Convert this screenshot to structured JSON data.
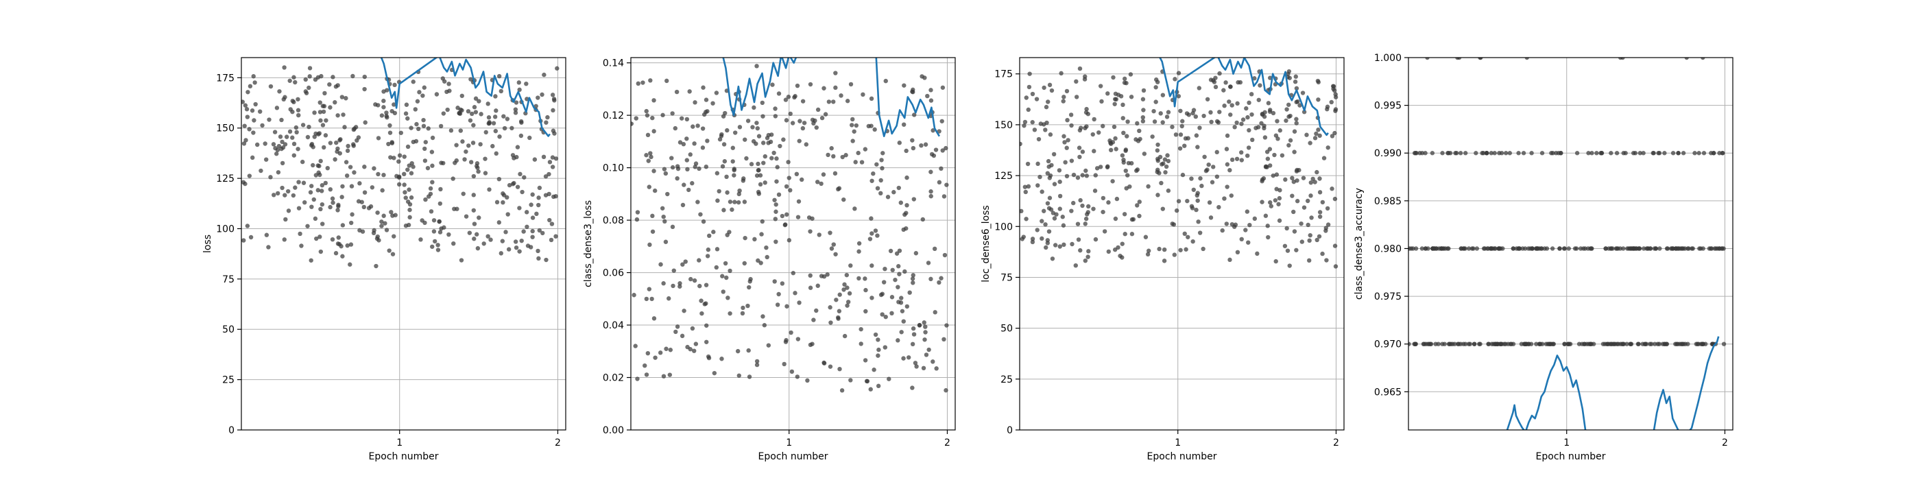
{
  "chart_data": [
    {
      "type": "scatter",
      "xlabel": "Epoch number",
      "ylabel": "loss",
      "xlim": [
        0,
        2.05
      ],
      "ylim": [
        0,
        185
      ],
      "xticks": [
        1,
        2
      ],
      "xtick_labels": [
        "1",
        "2"
      ],
      "yticks": [
        0,
        25,
        50,
        75,
        100,
        125,
        150,
        175
      ],
      "ytick_labels": [
        "0",
        "25",
        "50",
        "75",
        "100",
        "125",
        "150",
        "175"
      ],
      "grid": true,
      "scatter": {
        "n": 520,
        "x_range": [
          0.0,
          2.0
        ],
        "y_range": [
          75,
          185
        ],
        "color": "#3a3a3a"
      },
      "line": {
        "color": "#1f77b4",
        "x": [
          0.88,
          0.9,
          0.92,
          0.95,
          0.97,
          0.98,
          1.0,
          1.25,
          1.28,
          1.3,
          1.33,
          1.35,
          1.38,
          1.4,
          1.42,
          1.45,
          1.48,
          1.5,
          1.53,
          1.55,
          1.58,
          1.6,
          1.62,
          1.65,
          1.68,
          1.7,
          1.72,
          1.75,
          1.78,
          1.8,
          1.82,
          1.85,
          1.88,
          1.9,
          1.92,
          1.94,
          1.95
        ],
        "y": [
          186,
          182,
          175,
          165,
          168,
          160,
          172,
          186,
          180,
          178,
          183,
          176,
          182,
          179,
          184,
          180,
          170,
          172,
          178,
          168,
          166,
          176,
          172,
          170,
          177,
          166,
          163,
          168,
          162,
          158,
          165,
          160,
          158,
          150,
          148,
          146,
          147
        ]
      }
    },
    {
      "type": "scatter",
      "xlabel": "Epoch number",
      "ylabel": "class_dense3_loss",
      "xlim": [
        0,
        2.05
      ],
      "ylim": [
        0,
        0.142
      ],
      "xticks": [
        1,
        2
      ],
      "xtick_labels": [
        "1",
        "2"
      ],
      "yticks": [
        0,
        0.02,
        0.04,
        0.06,
        0.08,
        0.1,
        0.12,
        0.14
      ],
      "ytick_labels": [
        "0.00",
        "0.02",
        "0.04",
        "0.06",
        "0.08",
        "0.10",
        "0.12",
        "0.14"
      ],
      "grid": true,
      "scatter": {
        "n": 520,
        "x_range": [
          0.0,
          2.0
        ],
        "y_range": [
          0.004,
          0.142
        ],
        "color": "#3a3a3a"
      },
      "line": {
        "color": "#1f77b4",
        "x": [
          0.58,
          0.6,
          0.63,
          0.65,
          0.68,
          0.7,
          0.73,
          0.75,
          0.78,
          0.8,
          0.83,
          0.85,
          0.88,
          0.9,
          0.93,
          0.95,
          0.98,
          1.0,
          1.03,
          1.05,
          1.1,
          1.55,
          1.57,
          1.6,
          1.63,
          1.65,
          1.68,
          1.7,
          1.73,
          1.75,
          1.78,
          1.8,
          1.83,
          1.85,
          1.88,
          1.9,
          1.92,
          1.95
        ],
        "y": [
          0.143,
          0.138,
          0.124,
          0.12,
          0.131,
          0.122,
          0.128,
          0.134,
          0.125,
          0.132,
          0.136,
          0.127,
          0.133,
          0.14,
          0.135,
          0.143,
          0.138,
          0.143,
          0.14,
          0.143,
          0.143,
          0.143,
          0.12,
          0.112,
          0.118,
          0.113,
          0.116,
          0.122,
          0.119,
          0.127,
          0.124,
          0.121,
          0.126,
          0.124,
          0.119,
          0.123,
          0.115,
          0.112
        ]
      }
    },
    {
      "type": "scatter",
      "xlabel": "Epoch number",
      "ylabel": "loc_dense6_loss",
      "xlim": [
        0,
        2.05
      ],
      "ylim": [
        0,
        183
      ],
      "xticks": [
        1,
        2
      ],
      "xtick_labels": [
        "1",
        "2"
      ],
      "yticks": [
        0,
        25,
        50,
        75,
        100,
        125,
        150,
        175
      ],
      "ytick_labels": [
        "0",
        "25",
        "50",
        "75",
        "100",
        "125",
        "150",
        "175"
      ],
      "grid": true,
      "scatter": {
        "n": 520,
        "x_range": [
          0.0,
          2.0
        ],
        "y_range": [
          74,
          183
        ],
        "color": "#3a3a3a"
      },
      "line": {
        "color": "#1f77b4",
        "x": [
          0.88,
          0.9,
          0.92,
          0.95,
          0.97,
          0.98,
          1.0,
          1.25,
          1.28,
          1.3,
          1.33,
          1.35,
          1.38,
          1.4,
          1.42,
          1.45,
          1.48,
          1.5,
          1.53,
          1.55,
          1.58,
          1.6,
          1.62,
          1.65,
          1.68,
          1.7,
          1.72,
          1.75,
          1.78,
          1.8,
          1.82,
          1.85,
          1.88,
          1.9,
          1.92,
          1.94,
          1.95
        ],
        "y": [
          184,
          181,
          174,
          164,
          167,
          159,
          171,
          184,
          179,
          177,
          182,
          175,
          181,
          178,
          183,
          179,
          169,
          171,
          177,
          167,
          165,
          175,
          171,
          169,
          176,
          165,
          162,
          167,
          161,
          157,
          164,
          159,
          157,
          149,
          147,
          145,
          146
        ]
      }
    },
    {
      "type": "scatter",
      "xlabel": "Epoch number",
      "ylabel": "class_dense3_accuracy",
      "xlim": [
        0,
        2.05
      ],
      "ylim": [
        0.961,
        1.0
      ],
      "xticks": [
        1,
        2
      ],
      "xtick_labels": [
        "1",
        "2"
      ],
      "yticks": [
        0.965,
        0.97,
        0.975,
        0.98,
        0.985,
        0.99,
        0.995,
        1.0
      ],
      "ytick_labels": [
        "0.965",
        "0.970",
        "0.975",
        "0.980",
        "0.985",
        "0.990",
        "0.995",
        "1.000"
      ],
      "grid": true,
      "scatter": {
        "levels": [
          0.97,
          0.98,
          0.99,
          1.0
        ],
        "counts": [
          150,
          160,
          70,
          10
        ],
        "x_range": [
          0.0,
          2.0
        ],
        "color": "#3a3a3a"
      },
      "line": {
        "color": "#1f77b4",
        "segments": [
          {
            "x": [
              0.62,
              0.64,
              0.66,
              0.67,
              0.68,
              0.7,
              0.72,
              0.74,
              0.76,
              0.78,
              0.8,
              0.82,
              0.84,
              0.86,
              0.88,
              0.9,
              0.92,
              0.94,
              0.96,
              0.98,
              1.0,
              1.02,
              1.04,
              1.06,
              1.08,
              1.1,
              1.12
            ],
            "y": [
              0.9608,
              0.9618,
              0.9628,
              0.9636,
              0.9625,
              0.9618,
              0.9612,
              0.9608,
              0.9618,
              0.9625,
              0.9622,
              0.9632,
              0.9645,
              0.965,
              0.9662,
              0.9672,
              0.9678,
              0.9688,
              0.9682,
              0.9672,
              0.9676,
              0.9668,
              0.9655,
              0.9662,
              0.9648,
              0.9632,
              0.9608
            ]
          },
          {
            "x": [
              1.55,
              1.57,
              1.59,
              1.61,
              1.63,
              1.65,
              1.67,
              1.69,
              1.71,
              1.73,
              1.75,
              1.77,
              1.79,
              1.81,
              1.83,
              1.85,
              1.87,
              1.89,
              1.91,
              1.93,
              1.95,
              1.96
            ],
            "y": [
              0.9608,
              0.9628,
              0.9642,
              0.9652,
              0.9638,
              0.9645,
              0.9622,
              0.9615,
              0.9608,
              0.9608,
              0.9608,
              0.9608,
              0.9612,
              0.9625,
              0.9638,
              0.9652,
              0.9665,
              0.968,
              0.969,
              0.9698,
              0.9702,
              0.9708
            ]
          }
        ]
      }
    }
  ]
}
